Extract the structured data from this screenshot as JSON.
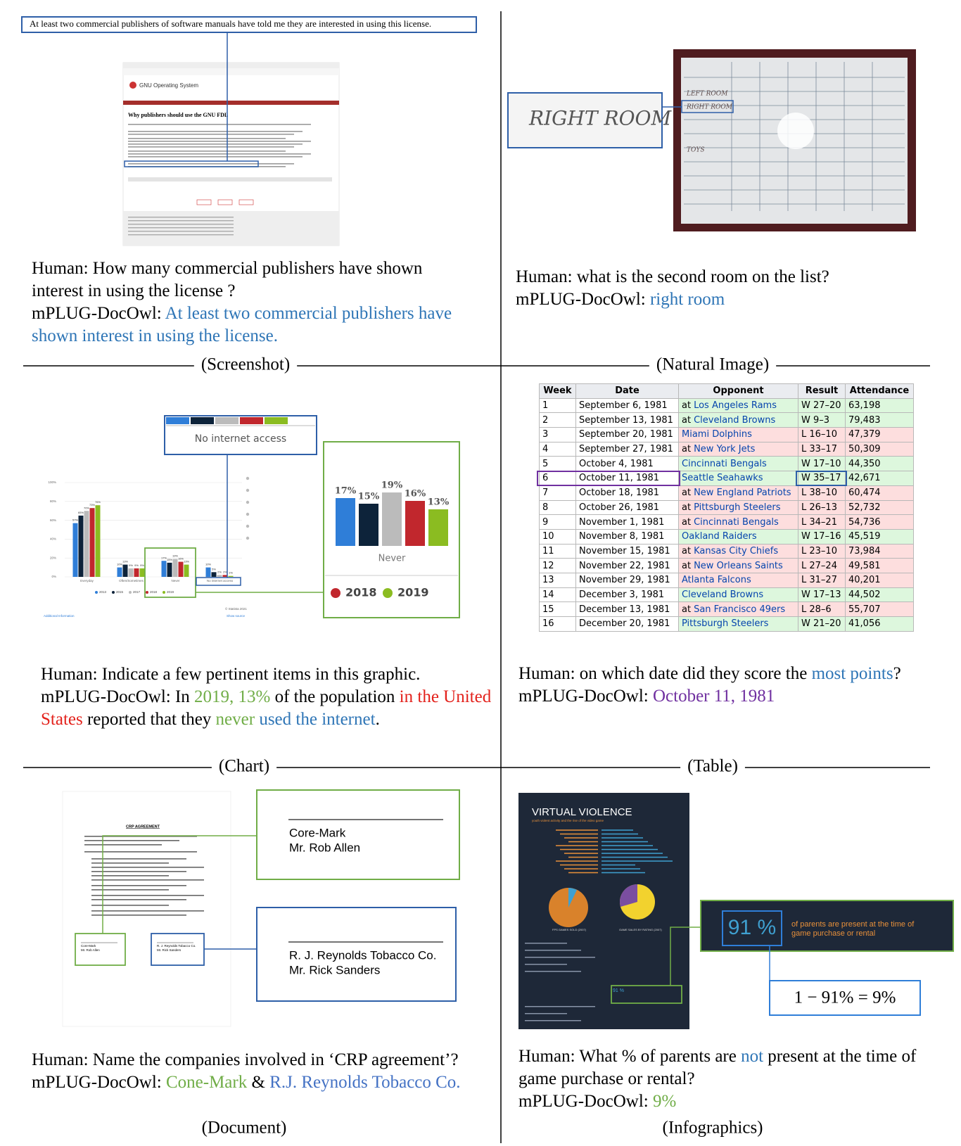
{
  "panels": {
    "screenshot": {
      "caption": "(Screenshot)",
      "highlight": "At least two commercial publishers of software manuals have told me they are interested in using this license.",
      "page_logo": "GNU Operating System",
      "page_title": "Why publishers should use the GNU FDL",
      "question": [
        {
          "text": "Human: How many commercial publishers have shown interest in using the license ?",
          "color": "#000000"
        }
      ],
      "answer": [
        {
          "text": "mPLUG-DocOwl: ",
          "color": "#000000"
        },
        {
          "text": "At least two commercial publishers have shown interest in using the license.",
          "color": "#2e75b6"
        }
      ]
    },
    "natural_image": {
      "caption": "(Natural Image)",
      "board_labels": [
        "LEFT ROOM",
        "RIGHT ROOM",
        "TOYS"
      ],
      "zoom_label": "RIGHT ROOM",
      "question": [
        {
          "text": "Human: what is the second room on the list?",
          "color": "#000000"
        }
      ],
      "answer": [
        {
          "text": "mPLUG-DocOwl: ",
          "color": "#000000"
        },
        {
          "text": "right room",
          "color": "#2e75b6"
        }
      ]
    },
    "chart": {
      "caption": "(Chart)",
      "thumbnail": {
        "type": "bar",
        "categories": [
          "Everyday",
          "Often/Sometimes",
          "Never",
          "No internet access"
        ],
        "series": [
          {
            "name": "2013",
            "color": "#2f7ed8",
            "values": [
              57,
              10,
              17,
              10
            ],
            "value_labels": [
              "57%",
              "10%",
              "17%",
              "10%"
            ]
          },
          {
            "name": "2015",
            "color": "#0d233a",
            "values": [
              65,
              13,
              15,
              5
            ],
            "value_labels": [
              "65%",
              "13%",
              "15%",
              "5%"
            ]
          },
          {
            "name": "2017",
            "color": "#bbbbbb",
            "values": [
              70,
              9,
              19,
              2
            ],
            "value_labels": [
              "70%",
              "9%",
              "19%",
              "2%"
            ]
          },
          {
            "name": "2018",
            "color": "#c1272d",
            "values": [
              73,
              9,
              16,
              2
            ],
            "value_labels": [
              "73%",
              "9%",
              "16%",
              "2%"
            ]
          },
          {
            "name": "2019",
            "color": "#8bbc21",
            "values": [
              76,
              9,
              13,
              1
            ],
            "value_labels": [
              "76%",
              "9%",
              "13%",
              "1%"
            ]
          }
        ],
        "ylim": [
          0,
          100
        ],
        "yticks": [
          {
            "value": 0,
            "label": "0%"
          },
          {
            "value": 20,
            "label": "20%"
          },
          {
            "value": 40,
            "label": "40%"
          },
          {
            "value": 60,
            "label": "60%"
          },
          {
            "value": 80,
            "label": "80%"
          },
          {
            "value": 100,
            "label": "100%"
          }
        ],
        "grid": true,
        "source": "© Statista 2021",
        "info": "Additional Information",
        "show_source": "Show source"
      },
      "zoom_label": "No internet access",
      "zoom": {
        "type": "bar",
        "category": "Never",
        "values": [
          17,
          15,
          19,
          16,
          13
        ],
        "value_labels": [
          "17%",
          "15%",
          "19%",
          "16%",
          "13%"
        ],
        "colors": [
          "#2f7ed8",
          "#0d233a",
          "#bbbbbb",
          "#c1272d",
          "#8bbc21"
        ],
        "legend": [
          {
            "name": "2018",
            "color": "#c1272d"
          },
          {
            "name": "2019",
            "color": "#8bbc21"
          }
        ]
      },
      "question": [
        {
          "text": "Human: Indicate a few pertinent items in this graphic.",
          "color": "#000000"
        }
      ],
      "answer": [
        {
          "text": "mPLUG-DocOwl: In ",
          "color": "#000000"
        },
        {
          "text": "2019, 13%",
          "color": "#70ad47"
        },
        {
          "text": " of the population ",
          "color": "#000000"
        },
        {
          "text": "in the United States",
          "color": "#e3221c"
        },
        {
          "text": " reported that they ",
          "color": "#000000"
        },
        {
          "text": "never",
          "color": "#70ad47"
        },
        {
          "text": " ",
          "color": "#000000"
        },
        {
          "text": "used the internet",
          "color": "#2e75b6"
        },
        {
          "text": ".",
          "color": "#000000"
        }
      ]
    },
    "table": {
      "caption": "(Table)",
      "header": [
        "Week",
        "Date",
        "Opponent",
        "Result",
        "Attendance"
      ],
      "rows": [
        [
          1,
          "September 6, 1981",
          [
            "at",
            "Los Angeles Rams"
          ],
          "W 27–20",
          "63,198"
        ],
        [
          2,
          "September 13, 1981",
          [
            "at",
            "Cleveland Browns"
          ],
          "W 9–3",
          "79,483"
        ],
        [
          3,
          "September 20, 1981",
          [
            "Miami Dolphins"
          ],
          "L 16–10",
          "47,379"
        ],
        [
          4,
          "September 27, 1981",
          [
            "at",
            "New York Jets"
          ],
          "L 33–17",
          "50,309"
        ],
        [
          5,
          "October 4, 1981",
          [
            "Cincinnati Bengals"
          ],
          "W 17–10",
          "44,350"
        ],
        [
          6,
          "October 11, 1981",
          [
            "Seattle Seahawks"
          ],
          "W 35–17",
          "42,671"
        ],
        [
          7,
          "October 18, 1981",
          [
            "at",
            "New England Patriots"
          ],
          "L 38–10",
          "60,474"
        ],
        [
          8,
          "October 26, 1981",
          [
            "at",
            "Pittsburgh Steelers"
          ],
          "L 26–13",
          "52,732"
        ],
        [
          9,
          "November 1, 1981",
          [
            "at",
            "Cincinnati Bengals"
          ],
          "L 34–21",
          "54,736"
        ],
        [
          10,
          "November 8, 1981",
          [
            "Oakland Raiders"
          ],
          "W 17–16",
          "45,519"
        ],
        [
          11,
          "November 15, 1981",
          [
            "at",
            "Kansas City Chiefs"
          ],
          "L 23–10",
          "73,984"
        ],
        [
          12,
          "November 22, 1981",
          [
            "at",
            "New Orleans Saints"
          ],
          "L 27–24",
          "49,581"
        ],
        [
          13,
          "November 29, 1981",
          [
            "Atlanta Falcons"
          ],
          "L 31–27",
          "40,201"
        ],
        [
          14,
          "December 3, 1981",
          [
            "Cleveland Browns"
          ],
          "W 17–13",
          "44,502"
        ],
        [
          15,
          "December 13, 1981",
          [
            "at",
            "San Francisco 49ers"
          ],
          "L 28–6",
          "55,707"
        ],
        [
          16,
          "December 20, 1981",
          [
            "Pittsburgh Steelers"
          ],
          "W 21–20",
          "41,056"
        ]
      ],
      "question": [
        {
          "text": "Human: on which date did they score the ",
          "color": "#000000"
        },
        {
          "text": "most points",
          "color": "#2e75b6"
        },
        {
          "text": "?",
          "color": "#000000"
        }
      ],
      "answer": [
        {
          "text": "mPLUG-DocOwl: ",
          "color": "#000000"
        },
        {
          "text": "October 11, 1981",
          "color": "#7030a0"
        }
      ]
    },
    "document": {
      "caption": "(Document)",
      "title": "CRP AGREEMENT",
      "signatures": [
        {
          "company": "Core-Mark",
          "name": "Mr. Rob Allen"
        },
        {
          "company": "R. J. Reynolds Tobacco Co.",
          "name": "Mr. Rick Sanders"
        }
      ],
      "question": [
        {
          "text": "Human: Name the companies involved in ‘CRP agreement’?",
          "color": "#000000"
        }
      ],
      "answer": [
        {
          "text": "mPLUG-DocOwl: ",
          "color": "#000000"
        },
        {
          "text": "Cone-Mark",
          "color": "#70ad47"
        },
        {
          "text": " & ",
          "color": "#000000"
        },
        {
          "text": "R.J. Reynolds Tobacco Co.",
          "color": "#4472c4"
        }
      ]
    },
    "infographics": {
      "caption": "(Infographics)",
      "title": "VIRTUAL VIOLENCE",
      "subtitle": "youth violent activity and the rise of the video game",
      "pie_labels": [
        "FPS GAMES SOLD (2007)",
        "GAME SALES BY RATING (2007)"
      ],
      "stat": "91 %",
      "stat_text": [
        "of parents are present at the time of",
        "game purchase or rental"
      ],
      "calculation": "1 − 91% = 9%",
      "question": [
        {
          "text": "Human: What % of parents are ",
          "color": "#000000"
        },
        {
          "text": "not",
          "color": "#2e75b6"
        },
        {
          "text": " present at the time of game purchase or rental?",
          "color": "#000000"
        }
      ],
      "answer": [
        {
          "text": "mPLUG-DocOwl: ",
          "color": "#000000"
        },
        {
          "text": "9%",
          "color": "#70ad47"
        }
      ]
    }
  }
}
